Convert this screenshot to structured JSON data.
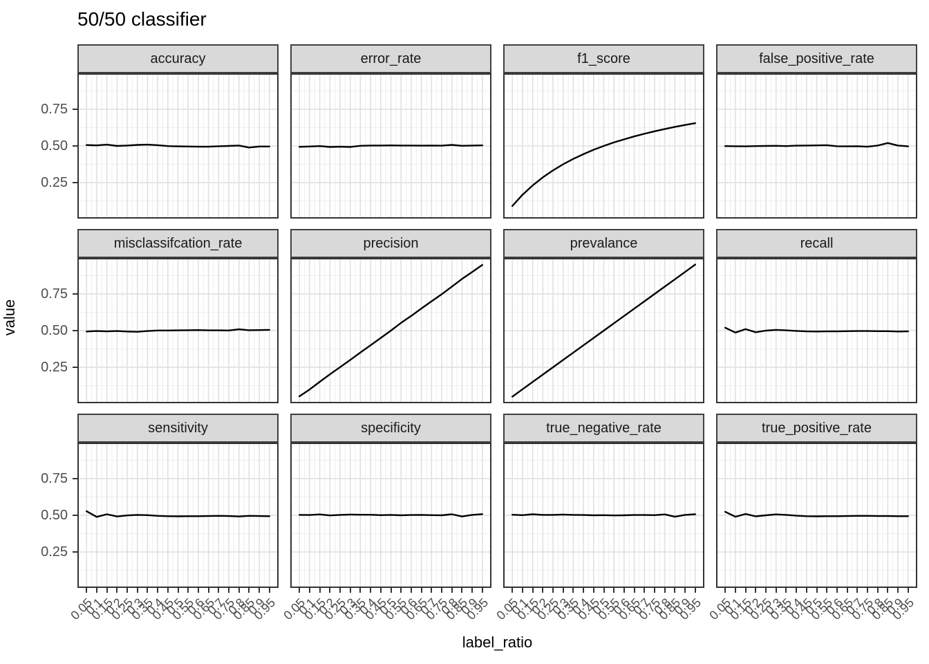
{
  "title": "50/50 classifier",
  "x_axis": {
    "label": "label_ratio",
    "tick_labels": [
      "0.05",
      "0.1",
      "0.15",
      "0.2",
      "0.25",
      "0.3",
      "0.35",
      "0.4",
      "0.45",
      "0.5",
      "0.55",
      "0.6",
      "0.65",
      "0.7",
      "0.75",
      "0.8",
      "0.85",
      "0.9",
      "0.95"
    ]
  },
  "y_axis": {
    "label": "value",
    "tick_labels": [
      "0.75",
      "0.50",
      "0.25"
    ],
    "tick_values": [
      0.75,
      0.5,
      0.25
    ]
  },
  "chart_data": {
    "type": "line",
    "title": "50/50 classifier",
    "xlabel": "label_ratio",
    "ylabel": "value",
    "facet_layout": {
      "rows": 3,
      "cols": 4
    },
    "legend": "none",
    "grid": "major and minor gridlines, light gray on white panels",
    "xlim": [
      0.005,
      0.995
    ],
    "ylim": [
      0.005,
      0.995
    ],
    "x_major_ticks": [
      0.05,
      0.1,
      0.15,
      0.2,
      0.25,
      0.3,
      0.35,
      0.4,
      0.45,
      0.5,
      0.55,
      0.6,
      0.65,
      0.7,
      0.75,
      0.8,
      0.85,
      0.9,
      0.95
    ],
    "y_major_gridlines": [
      0.25,
      0.5,
      0.75
    ],
    "y_minor_gridlines": [
      0.125,
      0.375,
      0.625,
      0.875
    ],
    "x": [
      0.05,
      0.1,
      0.15,
      0.2,
      0.25,
      0.3,
      0.35,
      0.4,
      0.45,
      0.5,
      0.55,
      0.6,
      0.65,
      0.7,
      0.75,
      0.8,
      0.85,
      0.9,
      0.95
    ],
    "facets": [
      {
        "name": "accuracy",
        "values": [
          0.506,
          0.504,
          0.509,
          0.5,
          0.503,
          0.507,
          0.509,
          0.505,
          0.499,
          0.497,
          0.496,
          0.495,
          0.495,
          0.498,
          0.5,
          0.503,
          0.489,
          0.496,
          0.496
        ]
      },
      {
        "name": "error_rate",
        "values": [
          0.494,
          0.496,
          0.499,
          0.493,
          0.495,
          0.493,
          0.501,
          0.503,
          0.503,
          0.504,
          0.503,
          0.503,
          0.502,
          0.503,
          0.502,
          0.507,
          0.501,
          0.503,
          0.504
        ]
      },
      {
        "name": "f1_score",
        "values": [
          0.091,
          0.167,
          0.231,
          0.286,
          0.333,
          0.375,
          0.412,
          0.444,
          0.474,
          0.5,
          0.524,
          0.545,
          0.565,
          0.583,
          0.6,
          0.615,
          0.63,
          0.643,
          0.655
        ]
      },
      {
        "name": "false_positive_rate",
        "values": [
          0.499,
          0.498,
          0.497,
          0.499,
          0.5,
          0.501,
          0.499,
          0.502,
          0.503,
          0.504,
          0.505,
          0.498,
          0.497,
          0.498,
          0.495,
          0.503,
          0.52,
          0.503,
          0.497
        ]
      },
      {
        "name": "misclassifcation_rate",
        "values": [
          0.494,
          0.497,
          0.495,
          0.497,
          0.494,
          0.492,
          0.497,
          0.501,
          0.501,
          0.502,
          0.503,
          0.504,
          0.502,
          0.502,
          0.501,
          0.509,
          0.503,
          0.504,
          0.505
        ]
      },
      {
        "name": "precision",
        "values": [
          0.052,
          0.099,
          0.151,
          0.202,
          0.251,
          0.3,
          0.351,
          0.4,
          0.45,
          0.5,
          0.553,
          0.6,
          0.651,
          0.7,
          0.748,
          0.8,
          0.852,
          0.9,
          0.948
        ]
      },
      {
        "name": "prevalance",
        "values": [
          0.05,
          0.1,
          0.15,
          0.2,
          0.25,
          0.3,
          0.35,
          0.4,
          0.45,
          0.5,
          0.55,
          0.6,
          0.65,
          0.7,
          0.75,
          0.8,
          0.85,
          0.9,
          0.95
        ]
      },
      {
        "name": "recall",
        "values": [
          0.52,
          0.487,
          0.51,
          0.489,
          0.5,
          0.505,
          0.502,
          0.498,
          0.495,
          0.494,
          0.495,
          0.495,
          0.496,
          0.497,
          0.497,
          0.496,
          0.496,
          0.494,
          0.495
        ]
      },
      {
        "name": "sensitivity",
        "values": [
          0.528,
          0.489,
          0.507,
          0.492,
          0.499,
          0.503,
          0.501,
          0.496,
          0.494,
          0.493,
          0.494,
          0.494,
          0.495,
          0.496,
          0.495,
          0.492,
          0.496,
          0.495,
          0.494
        ]
      },
      {
        "name": "specificity",
        "values": [
          0.503,
          0.502,
          0.506,
          0.499,
          0.503,
          0.505,
          0.504,
          0.504,
          0.501,
          0.503,
          0.5,
          0.502,
          0.503,
          0.501,
          0.5,
          0.507,
          0.492,
          0.503,
          0.508
        ]
      },
      {
        "name": "true_negative_rate",
        "values": [
          0.504,
          0.501,
          0.507,
          0.503,
          0.503,
          0.505,
          0.503,
          0.502,
          0.5,
          0.501,
          0.499,
          0.5,
          0.502,
          0.502,
          0.501,
          0.506,
          0.49,
          0.503,
          0.507
        ]
      },
      {
        "name": "true_positive_rate",
        "values": [
          0.524,
          0.49,
          0.509,
          0.493,
          0.5,
          0.506,
          0.503,
          0.497,
          0.494,
          0.493,
          0.494,
          0.494,
          0.495,
          0.496,
          0.496,
          0.495,
          0.495,
          0.494,
          0.494
        ]
      }
    ]
  },
  "style": {
    "strip_fill": "#d9d9d9",
    "strip_border": "#3f3f3f",
    "panel_border": "#333333",
    "panel_background": "#ffffff",
    "grid_major": "#e0e0e0",
    "grid_minor": "#f0f0f0",
    "line_color": "#000000",
    "tick_mark_color": "#333333",
    "tick_label_color": "#4d4d4d"
  }
}
